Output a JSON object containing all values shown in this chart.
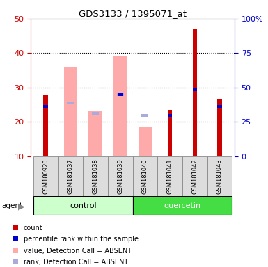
{
  "title": "GDS3133 / 1395071_at",
  "samples": [
    "GSM180920",
    "GSM181037",
    "GSM181038",
    "GSM181039",
    "GSM181040",
    "GSM181041",
    "GSM181042",
    "GSM181043"
  ],
  "red_bars": [
    28.0,
    null,
    null,
    null,
    null,
    23.5,
    47.0,
    26.5
  ],
  "blue_vals": [
    24.0,
    null,
    null,
    27.5,
    null,
    21.5,
    29.0,
    24.0
  ],
  "pink_bars": [
    null,
    36.0,
    23.0,
    39.0,
    18.5,
    null,
    null,
    null
  ],
  "lavender_vals": [
    null,
    25.0,
    22.0,
    27.5,
    21.5,
    null,
    null,
    null
  ],
  "ylim_left": [
    10,
    50
  ],
  "ylim_right": [
    0,
    100
  ],
  "yticks_left": [
    10,
    20,
    30,
    40,
    50
  ],
  "yticks_right": [
    0,
    25,
    50,
    75,
    100
  ],
  "yticklabels_right": [
    "0",
    "25",
    "50",
    "75",
    "100%"
  ],
  "left_axis_color": "#cc0000",
  "right_axis_color": "#0000cc",
  "pink_color": "#ffaaaa",
  "lavender_color": "#aaaadd",
  "red_color": "#cc0000",
  "blue_color": "#0000cc",
  "ctrl_color": "#ccffcc",
  "quer_color": "#44dd44",
  "legend_items": [
    {
      "label": "count",
      "color": "#cc0000"
    },
    {
      "label": "percentile rank within the sample",
      "color": "#0000cc"
    },
    {
      "label": "value, Detection Call = ABSENT",
      "color": "#ffaaaa"
    },
    {
      "label": "rank, Detection Call = ABSENT",
      "color": "#aaaadd"
    }
  ]
}
